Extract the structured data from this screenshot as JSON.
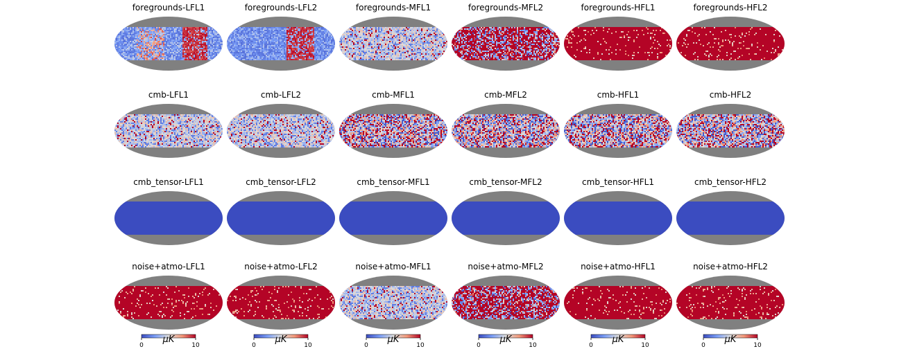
{
  "chart_data": {
    "type": "heatmap",
    "projection": "mollweide",
    "colormap": "coolwarm",
    "colors": {
      "cold": "#3b4cc0",
      "neutral": "#dddddd",
      "hot": "#b40426",
      "masked": "#808080"
    },
    "rows": [
      "foregrounds",
      "cmb",
      "cmb_tensor",
      "noise+atmo"
    ],
    "columns": [
      "LFL1",
      "LFL2",
      "MFL1",
      "MFL2",
      "HFL1",
      "HFL2"
    ],
    "panels": [
      {
        "title": "foregrounds-LFL1",
        "pattern": "mixed-cold-warm-right"
      },
      {
        "title": "foregrounds-LFL2",
        "pattern": "mostly-cold-warm-right"
      },
      {
        "title": "foregrounds-MFL1",
        "pattern": "light-noisy"
      },
      {
        "title": "foregrounds-MFL2",
        "pattern": "mostly-hot-noisy"
      },
      {
        "title": "foregrounds-HFL1",
        "pattern": "saturated-hot"
      },
      {
        "title": "foregrounds-HFL2",
        "pattern": "saturated-hot"
      },
      {
        "title": "cmb-LFL1",
        "pattern": "light-noisy"
      },
      {
        "title": "cmb-LFL2",
        "pattern": "light-noisy"
      },
      {
        "title": "cmb-MFL1",
        "pattern": "full-noisy"
      },
      {
        "title": "cmb-MFL2",
        "pattern": "full-noisy"
      },
      {
        "title": "cmb-HFL1",
        "pattern": "full-noisy"
      },
      {
        "title": "cmb-HFL2",
        "pattern": "full-noisy"
      },
      {
        "title": "cmb_tensor-LFL1",
        "pattern": "uniform-cold"
      },
      {
        "title": "cmb_tensor-LFL2",
        "pattern": "uniform-cold"
      },
      {
        "title": "cmb_tensor-MFL1",
        "pattern": "uniform-cold"
      },
      {
        "title": "cmb_tensor-MFL2",
        "pattern": "uniform-cold"
      },
      {
        "title": "cmb_tensor-HFL1",
        "pattern": "uniform-cold"
      },
      {
        "title": "cmb_tensor-HFL2",
        "pattern": "uniform-cold"
      },
      {
        "title": "noise+atmo-LFL1",
        "pattern": "saturated-hot"
      },
      {
        "title": "noise+atmo-LFL2",
        "pattern": "saturated-hot"
      },
      {
        "title": "noise+atmo-MFL1",
        "pattern": "light-noisy"
      },
      {
        "title": "noise+atmo-MFL2",
        "pattern": "mostly-hot-noisy"
      },
      {
        "title": "noise+atmo-HFL1",
        "pattern": "saturated-hot"
      },
      {
        "title": "noise+atmo-HFL2",
        "pattern": "saturated-hot"
      }
    ],
    "colorbar": {
      "min": 0,
      "max": 10,
      "ticks": [
        "0",
        "10"
      ],
      "unit_label": "μK"
    }
  }
}
